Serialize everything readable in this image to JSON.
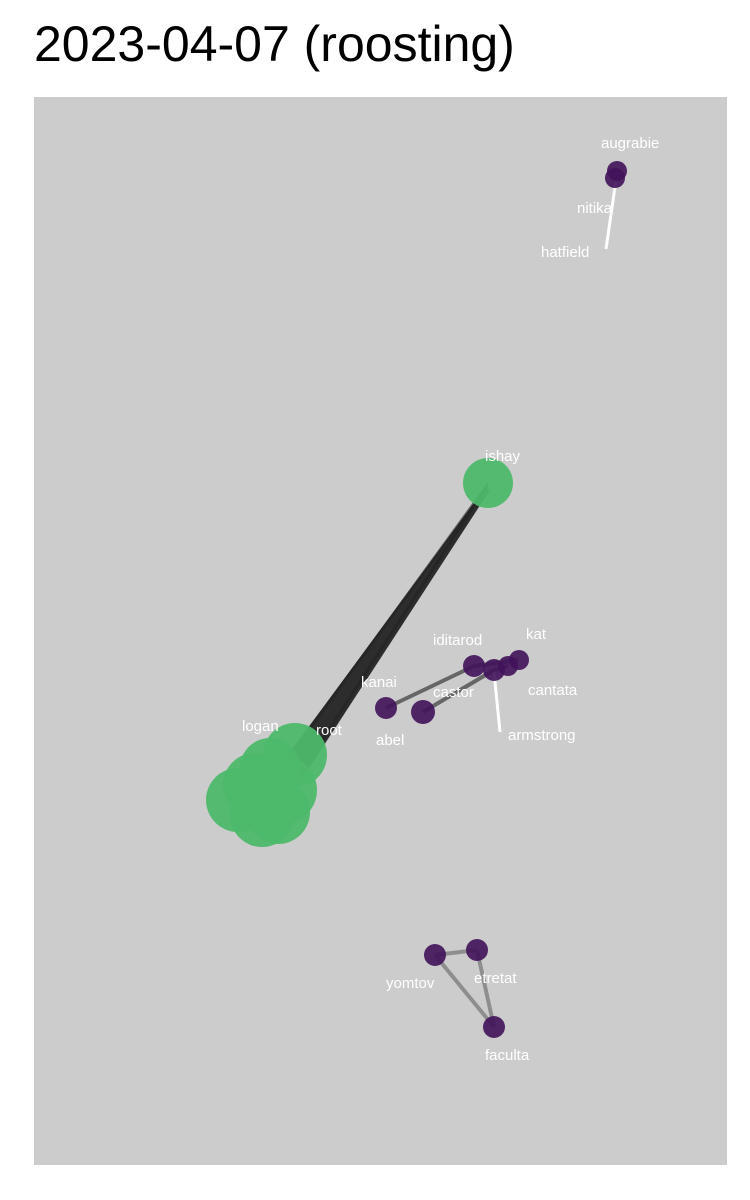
{
  "title": "2023-04-07 (roosting)",
  "colors": {
    "panel_bg": "#cccccc",
    "green_node": "#4db86a",
    "purple_node": "#41125a",
    "label": "#ffffff"
  },
  "labels": {
    "augrabie": "augrabie",
    "nitika": "nitika",
    "hatfield": "hatfield",
    "ishay": "ishay",
    "iditarod": "iditarod",
    "kat": "kat",
    "kanai": "kanai",
    "castor": "castor",
    "cantata": "cantata",
    "abel": "abel",
    "armstrong": "armstrong",
    "logan": "logan",
    "root": "root",
    "yomtov": "yomtov",
    "etretat": "etretat",
    "faculta": "faculta"
  }
}
